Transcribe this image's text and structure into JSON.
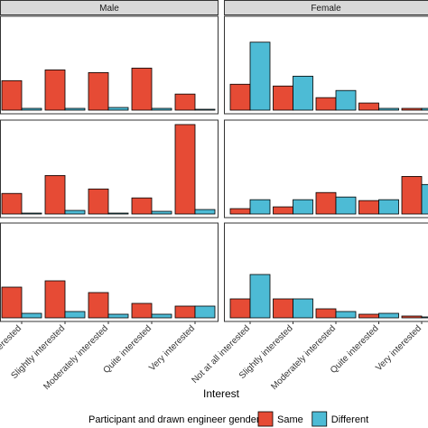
{
  "chart_data": {
    "type": "bar",
    "facet_columns": [
      "Male",
      "Female"
    ],
    "categories": [
      "Not at all interested",
      "Slightly interested",
      "Moderately interested",
      "Quite interested",
      "Very interested"
    ],
    "xlabel": "Interest",
    "legend_title": "Participant and drawn engineer gender",
    "ylim": [
      0,
      105
    ],
    "series": [
      {
        "name": "Same",
        "color": "#e64b35",
        "values": [
          [
            33,
            45,
            42,
            47,
            18
          ],
          [
            29,
            27,
            14,
            8,
            2
          ],
          [
            23,
            43,
            28,
            18,
            100
          ],
          [
            6,
            8,
            24,
            15,
            42
          ],
          [
            34,
            41,
            28,
            16,
            13
          ],
          [
            21,
            21,
            10,
            4,
            2
          ]
        ]
      },
      {
        "name": "Different",
        "color": "#4dbbd5",
        "values": [
          [
            2,
            2,
            3,
            2,
            1
          ],
          [
            76,
            38,
            22,
            2,
            2
          ],
          [
            1,
            4,
            1,
            3,
            5
          ],
          [
            16,
            16,
            19,
            16,
            33
          ],
          [
            5,
            7,
            4,
            4,
            13
          ],
          [
            48,
            21,
            7,
            5,
            1
          ]
        ]
      }
    ]
  }
}
